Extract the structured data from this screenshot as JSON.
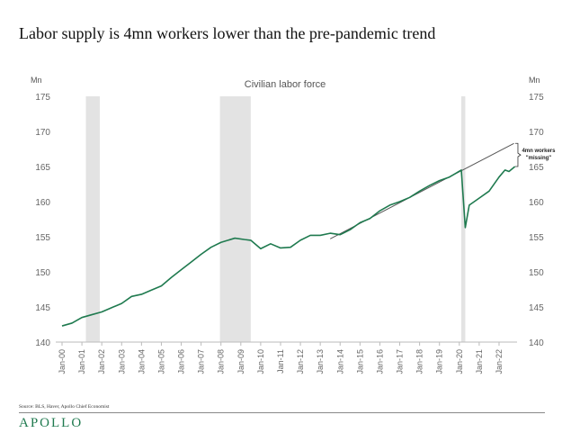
{
  "title": "Labor supply is 4mn workers lower than the pre-pandemic trend",
  "source": "Source: BLS, Haver, Apollo Chief Economist",
  "logo": "APOLLO",
  "colors": {
    "line": "#1f7a4f",
    "trend": "#555555",
    "recession": "#e3e3e3"
  },
  "chart_data": {
    "type": "line",
    "title": "Civilian labor force",
    "ylabel_left": "Mn",
    "ylabel_right": "Mn",
    "ylim": [
      140,
      175
    ],
    "yticks": [
      140,
      145,
      150,
      155,
      160,
      165,
      170,
      175
    ],
    "xlim": [
      1999.8,
      2022.9
    ],
    "xticks": [
      {
        "x": 2000,
        "label": "Jan-00"
      },
      {
        "x": 2001,
        "label": "Jan-01"
      },
      {
        "x": 2002,
        "label": "Jan-02"
      },
      {
        "x": 2003,
        "label": "Jan-03"
      },
      {
        "x": 2004,
        "label": "Jan-04"
      },
      {
        "x": 2005,
        "label": "Jan-05"
      },
      {
        "x": 2006,
        "label": "Jan-06"
      },
      {
        "x": 2007,
        "label": "Jan-07"
      },
      {
        "x": 2008,
        "label": "Jan-08"
      },
      {
        "x": 2009,
        "label": "Jan-09"
      },
      {
        "x": 2010,
        "label": "Jan-10"
      },
      {
        "x": 2011,
        "label": "Jan-11"
      },
      {
        "x": 2012,
        "label": "Jan-12"
      },
      {
        "x": 2013,
        "label": "Jan-13"
      },
      {
        "x": 2014,
        "label": "Jan-14"
      },
      {
        "x": 2015,
        "label": "Jan-15"
      },
      {
        "x": 2016,
        "label": "Jan-16"
      },
      {
        "x": 2017,
        "label": "Jan-17"
      },
      {
        "x": 2018,
        "label": "Jan-18"
      },
      {
        "x": 2019,
        "label": "Jan-19"
      },
      {
        "x": 2020,
        "label": "Jan-20"
      },
      {
        "x": 2021,
        "label": "Jan-21"
      },
      {
        "x": 2022,
        "label": "Jan-22"
      }
    ],
    "recessions": [
      [
        2001.2,
        2001.9
      ],
      [
        2007.95,
        2009.5
      ],
      [
        2020.1,
        2020.3
      ]
    ],
    "series": [
      {
        "name": "Civilian labor force",
        "points": [
          [
            2000,
            142.3
          ],
          [
            2000.5,
            142.7
          ],
          [
            2001,
            143.5
          ],
          [
            2001.5,
            143.9
          ],
          [
            2002,
            144.3
          ],
          [
            2002.5,
            144.9
          ],
          [
            2003,
            145.5
          ],
          [
            2003.5,
            146.5
          ],
          [
            2004,
            146.8
          ],
          [
            2004.5,
            147.4
          ],
          [
            2005,
            148
          ],
          [
            2005.5,
            149.2
          ],
          [
            2006,
            150.3
          ],
          [
            2006.5,
            151.4
          ],
          [
            2007,
            152.5
          ],
          [
            2007.5,
            153.5
          ],
          [
            2008,
            154.2
          ],
          [
            2008.7,
            154.8
          ],
          [
            2009.2,
            154.6
          ],
          [
            2009.5,
            154.5
          ],
          [
            2010,
            153.3
          ],
          [
            2010.5,
            154
          ],
          [
            2011,
            153.4
          ],
          [
            2011.5,
            153.5
          ],
          [
            2012,
            154.5
          ],
          [
            2012.5,
            155.2
          ],
          [
            2013,
            155.2
          ],
          [
            2013.5,
            155.5
          ],
          [
            2014,
            155.3
          ],
          [
            2014.5,
            156
          ],
          [
            2015,
            157
          ],
          [
            2015.5,
            157.6
          ],
          [
            2016,
            158.7
          ],
          [
            2016.5,
            159.5
          ],
          [
            2017,
            160
          ],
          [
            2017.5,
            160.6
          ],
          [
            2018,
            161.5
          ],
          [
            2018.5,
            162.3
          ],
          [
            2019,
            163
          ],
          [
            2019.5,
            163.5
          ],
          [
            2020.1,
            164.5
          ],
          [
            2020.3,
            156.3
          ],
          [
            2020.5,
            159.5
          ],
          [
            2021,
            160.5
          ],
          [
            2021.5,
            161.5
          ],
          [
            2022,
            163.5
          ],
          [
            2022.3,
            164.5
          ],
          [
            2022.5,
            164.3
          ],
          [
            2022.8,
            165
          ]
        ]
      }
    ],
    "trend": {
      "name": "Pre-pandemic trend",
      "points": [
        [
          2013.5,
          154.7
        ],
        [
          2022.75,
          168.3
        ]
      ]
    },
    "annotation": {
      "line1": "4mn workers",
      "line2": "\"missing\"",
      "from": 165,
      "to": 168.3
    }
  }
}
